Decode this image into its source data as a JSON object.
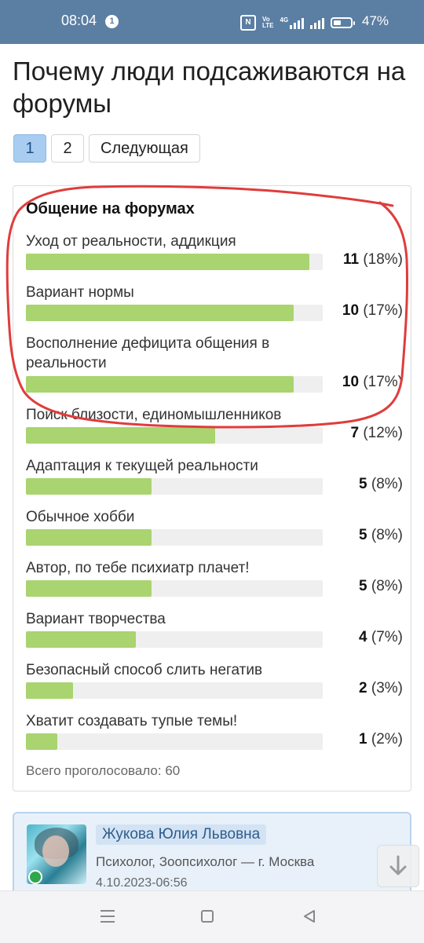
{
  "status_bar": {
    "time": "08:04",
    "notification_count": "1",
    "battery": "47%",
    "battery_level": 0.47,
    "icons": [
      "nfc-icon",
      "volte-icon",
      "4g-signal-icon",
      "signal-icon",
      "battery-icon"
    ],
    "volte_label_top": "Vo",
    "volte_label_bottom": "LTE",
    "network_label": "4G",
    "nfc_label": "N"
  },
  "page": {
    "title": "Почему люди подсаживаются на форумы"
  },
  "pagination": {
    "pages": [
      "1",
      "2"
    ],
    "active_page": "1",
    "next_label": "Следующая"
  },
  "poll": {
    "title": "Общение на форумах",
    "total_label": "Всего проголосовало: 60",
    "options": [
      {
        "label": "Уход от реальности, аддикция",
        "votes": "11",
        "percent": "(18%)",
        "share": 0.18
      },
      {
        "label": "Вариант нормы",
        "votes": "10",
        "percent": "(17%)",
        "share": 0.17
      },
      {
        "label": "Восполнение дефицита общения в реальности",
        "votes": "10",
        "percent": "(17%)",
        "share": 0.17
      },
      {
        "label": "Поиск близости, единомышленников",
        "votes": "7",
        "percent": "(12%)",
        "share": 0.12
      },
      {
        "label": "Адаптация к текущей реальности",
        "votes": "5",
        "percent": "(8%)",
        "share": 0.08
      },
      {
        "label": "Обычное хобби",
        "votes": "5",
        "percent": "(8%)",
        "share": 0.08
      },
      {
        "label": "Автор, по тебе психиатр плачет!",
        "votes": "5",
        "percent": "(8%)",
        "share": 0.08
      },
      {
        "label": "Вариант творчества",
        "votes": "4",
        "percent": "(7%)",
        "share": 0.07
      },
      {
        "label": "Безопасный способ слить негатив",
        "votes": "2",
        "percent": "(3%)",
        "share": 0.03
      },
      {
        "label": "Хватит создавать тупые темы!",
        "votes": "1",
        "percent": "(2%)",
        "share": 0.02
      }
    ],
    "bar_color": "#a9d46f",
    "annotation_color": "#e03c3c"
  },
  "post": {
    "author": "Жукова Юлия Львовна",
    "role": "Психолог, Зоопсихолог — г. Москва",
    "date": "4.10.2023-06:56",
    "online": true
  },
  "nav": {
    "icons": [
      "menu-icon",
      "home-icon",
      "back-icon",
      "arrow-down-icon"
    ]
  }
}
